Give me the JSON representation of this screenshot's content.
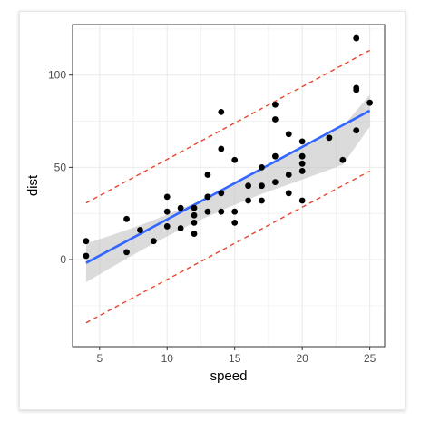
{
  "chart_data": {
    "type": "scatter",
    "xlabel": "speed",
    "ylabel": "dist",
    "xlim": [
      3.0,
      26.1
    ],
    "ylim": [
      -47.2,
      127.4
    ],
    "x_ticks": [
      5,
      10,
      15,
      20,
      25
    ],
    "y_ticks": [
      0,
      50,
      100
    ],
    "x_minor": [
      7.5,
      12.5,
      17.5,
      22.5
    ],
    "y_minor": [
      -25,
      25,
      75,
      125
    ],
    "grid": true,
    "points": [
      [
        4,
        2
      ],
      [
        4,
        10
      ],
      [
        7,
        4
      ],
      [
        7,
        22
      ],
      [
        8,
        16
      ],
      [
        9,
        10
      ],
      [
        10,
        18
      ],
      [
        10,
        26
      ],
      [
        10,
        34
      ],
      [
        11,
        17
      ],
      [
        11,
        28
      ],
      [
        12,
        14
      ],
      [
        12,
        20
      ],
      [
        12,
        24
      ],
      [
        12,
        28
      ],
      [
        13,
        26
      ],
      [
        13,
        34
      ],
      [
        13,
        34
      ],
      [
        13,
        46
      ],
      [
        14,
        26
      ],
      [
        14,
        36
      ],
      [
        14,
        60
      ],
      [
        14,
        80
      ],
      [
        15,
        20
      ],
      [
        15,
        26
      ],
      [
        15,
        54
      ],
      [
        16,
        32
      ],
      [
        16,
        40
      ],
      [
        17,
        32
      ],
      [
        17,
        40
      ],
      [
        17,
        50
      ],
      [
        18,
        42
      ],
      [
        18,
        56
      ],
      [
        18,
        76
      ],
      [
        18,
        84
      ],
      [
        19,
        36
      ],
      [
        19,
        46
      ],
      [
        19,
        68
      ],
      [
        20,
        32
      ],
      [
        20,
        48
      ],
      [
        20,
        52
      ],
      [
        20,
        56
      ],
      [
        20,
        64
      ],
      [
        22,
        66
      ],
      [
        23,
        54
      ],
      [
        24,
        70
      ],
      [
        24,
        92
      ],
      [
        24,
        93
      ],
      [
        24,
        120
      ],
      [
        25,
        85
      ]
    ],
    "fit_line": {
      "x": [
        4,
        25
      ],
      "y": [
        -1.8,
        80.7
      ],
      "color": "#3366ff"
    },
    "confidence_band": {
      "x": [
        4,
        6,
        8,
        10,
        12,
        14,
        15.4,
        17,
        19,
        21,
        23,
        25
      ],
      "lower": [
        -12.3,
        -3.7,
        4.7,
        12.6,
        20.0,
        26.6,
        30.9,
        35.6,
        40.8,
        46.0,
        51.4,
        72.0
      ],
      "upper": [
        8.7,
        13.5,
        18.6,
        24.3,
        30.6,
        37.5,
        42.2,
        48.6,
        57.0,
        65.0,
        72.0,
        89.4
      ],
      "color": "#bdbdbd"
    },
    "prediction_upper": {
      "x": [
        4,
        25
      ],
      "y": [
        30.7,
        113.4
      ],
      "color": "#e8452c"
    },
    "prediction_lower": {
      "x": [
        4,
        25
      ],
      "y": [
        -34.3,
        48.0
      ],
      "color": "#e8452c"
    },
    "point_color": "#000000",
    "panel_border_color": "#333333",
    "grid_color": "#ebebeb"
  }
}
